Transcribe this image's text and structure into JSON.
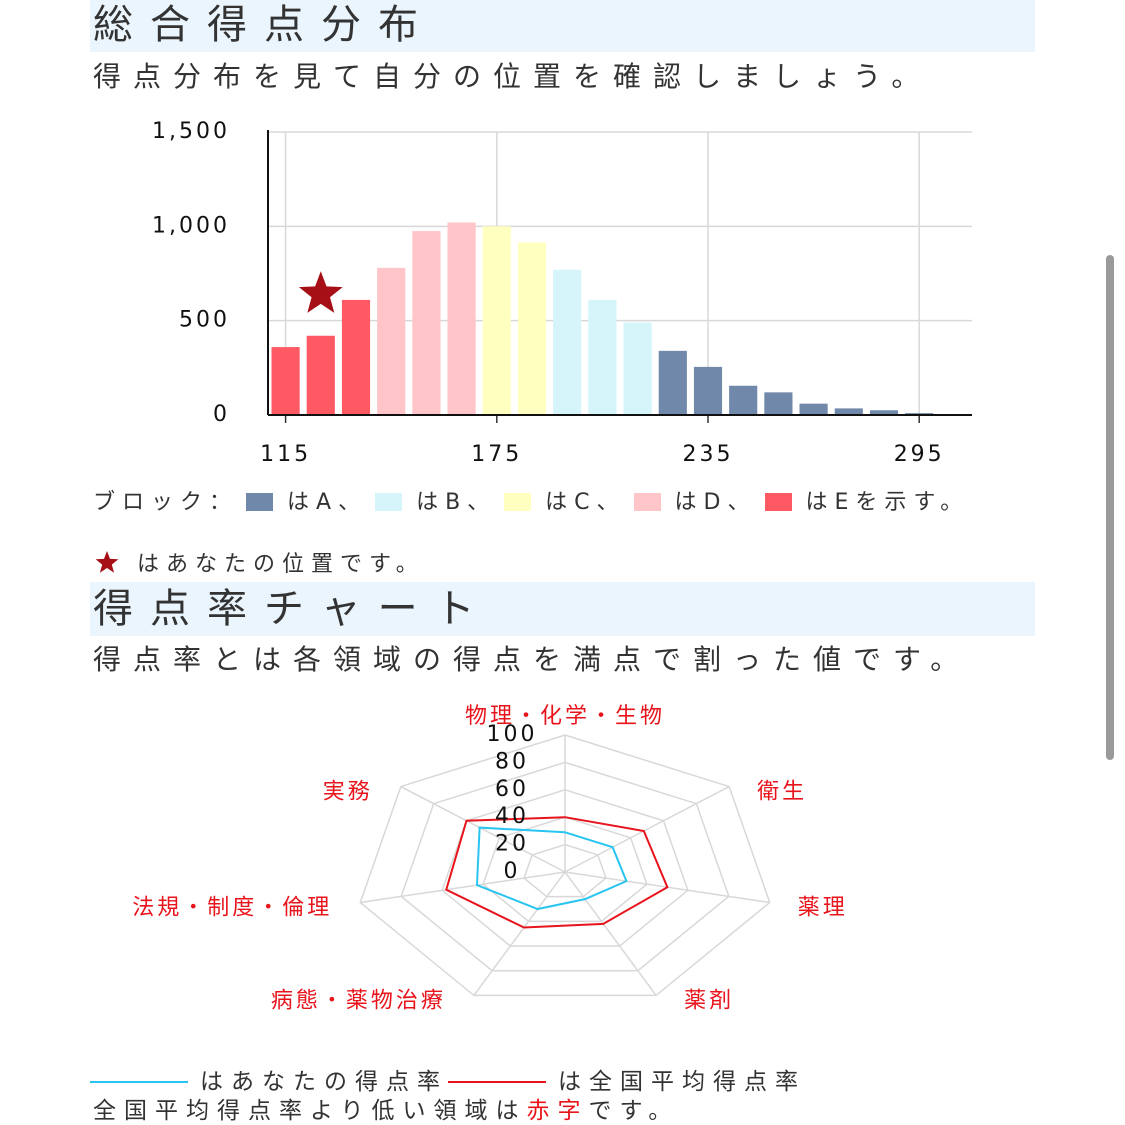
{
  "sections": [
    {
      "title": "総合得点分布",
      "subtitle": "得点分布を見て自分の位置を確認しましょう。"
    },
    {
      "title": "得点率チャート",
      "subtitle": "得点率とは各領域の得点を満点で割った値です。"
    }
  ],
  "chart_data": [
    {
      "type": "bar",
      "x": [
        115,
        125,
        135,
        145,
        155,
        165,
        175,
        185,
        195,
        205,
        215,
        225,
        235,
        245,
        255,
        265,
        275,
        285,
        295,
        305
      ],
      "values": [
        360,
        420,
        610,
        780,
        975,
        1020,
        1000,
        915,
        770,
        610,
        490,
        340,
        255,
        155,
        120,
        60,
        35,
        25,
        10,
        5
      ],
      "colors": [
        "#ff5a64",
        "#ff5a64",
        "#ff5a64",
        "#ffc5c8",
        "#ffc5c8",
        "#ffc5c8",
        "#ffffc0",
        "#ffffc0",
        "#d6f5fa",
        "#d6f5fa",
        "#d6f5fa",
        "#7088aa",
        "#7088aa",
        "#7088aa",
        "#7088aa",
        "#7088aa",
        "#7088aa",
        "#7088aa",
        "#7088aa",
        "#7088aa"
      ],
      "xlim": [
        110,
        310
      ],
      "xticks": [
        115,
        175,
        235,
        295
      ],
      "ylim": [
        0,
        1500
      ],
      "yticks": [
        0,
        500,
        {
          "value": 1000,
          "label": "1,000"
        },
        {
          "value": 1500,
          "label": "1,500"
        }
      ],
      "grid": true,
      "legend_prefix": "ブロック：",
      "blocks": [
        {
          "name": "はA、",
          "color": "#7088aa"
        },
        {
          "name": "はB、",
          "color": "#d6f5fa"
        },
        {
          "name": "はC、",
          "color": "#ffffc0"
        },
        {
          "name": "はD、",
          "color": "#ffc5c8"
        },
        {
          "name": "はEを示す。",
          "color": "#ff5a64"
        }
      ],
      "your_position": {
        "x": 125,
        "y": 640,
        "color": "#a50f15"
      },
      "position_note": "はあなたの位置です。"
    },
    {
      "type": "radar",
      "categories": [
        "物理・化学・生物",
        "衛生",
        "薬理",
        "薬剤",
        "病態・薬物治療",
        "法規・制度・倫理",
        "実務"
      ],
      "rlim": [
        0,
        100
      ],
      "rticks": [
        0,
        20,
        40,
        60,
        80,
        100
      ],
      "label_color": "#e8141c",
      "series": [
        {
          "name": "はあなたの得点率",
          "color": "#29c4f0",
          "values": [
            29,
            29,
            30,
            22,
            30,
            43,
            52
          ]
        },
        {
          "name": "は全国平均得点率",
          "color": "#e8141c",
          "values": [
            40,
            48,
            50,
            42,
            45,
            58,
            60
          ]
        }
      ],
      "footnote": [
        "全国平均得点率より低い領域は",
        "赤字",
        "です。"
      ]
    }
  ]
}
